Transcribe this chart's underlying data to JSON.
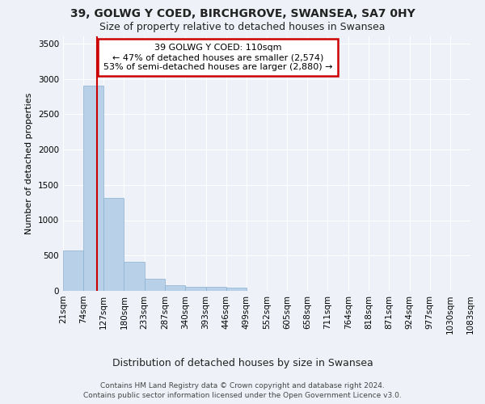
{
  "title1": "39, GOLWG Y COED, BIRCHGROVE, SWANSEA, SA7 0HY",
  "title2": "Size of property relative to detached houses in Swansea",
  "xlabel": "Distribution of detached houses by size in Swansea",
  "ylabel": "Number of detached properties",
  "footer1": "Contains HM Land Registry data © Crown copyright and database right 2024.",
  "footer2": "Contains public sector information licensed under the Open Government Licence v3.0.",
  "annotation_title": "39 GOLWG Y COED: 110sqm",
  "annotation_line1": "← 47% of detached houses are smaller (2,574)",
  "annotation_line2": "53% of semi-detached houses are larger (2,880) →",
  "subject_size": 110,
  "bar_color": "#b8d0e8",
  "bar_edge_color": "#8ab0d0",
  "subject_line_color": "#cc0000",
  "annotation_box_edgecolor": "#cc0000",
  "bin_edges": [
    21,
    74,
    127,
    180,
    233,
    287,
    340,
    393,
    446,
    499,
    552,
    605,
    658,
    711,
    764,
    818,
    871,
    924,
    977,
    1030,
    1083
  ],
  "bin_counts": [
    570,
    2900,
    1320,
    415,
    170,
    75,
    60,
    55,
    45,
    0,
    0,
    0,
    0,
    0,
    0,
    0,
    0,
    0,
    0,
    0
  ],
  "ylim": [
    0,
    3600
  ],
  "yticks": [
    0,
    500,
    1000,
    1500,
    2000,
    2500,
    3000,
    3500
  ],
  "bg_color": "#eef2f8",
  "grid_color": "#ffffff",
  "title_fontsize": 10,
  "subtitle_fontsize": 9,
  "ylabel_fontsize": 8,
  "xlabel_fontsize": 9,
  "tick_fontsize": 7.5,
  "footer_fontsize": 6.5
}
